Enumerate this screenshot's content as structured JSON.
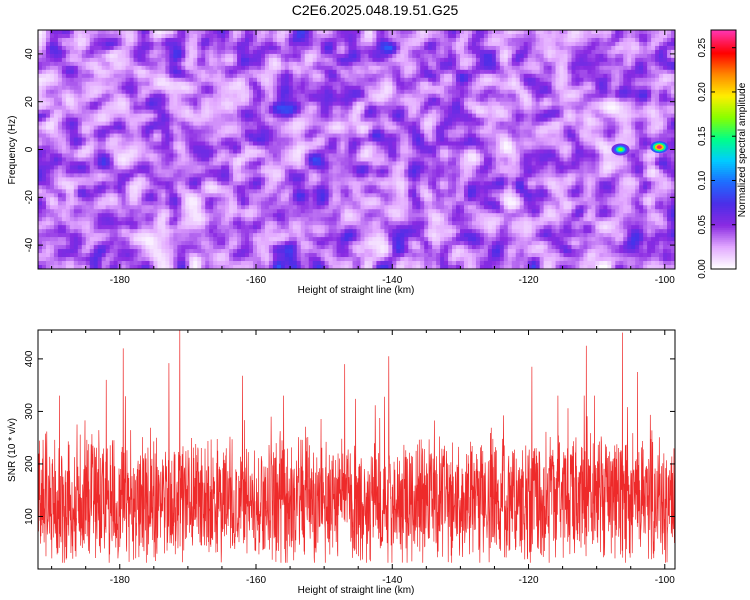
{
  "title": "C2E6.2025.048.19.51.G25",
  "colors": {
    "snr_line": "#ee2a2a",
    "frame": "#000000"
  },
  "chart_data": [
    {
      "type": "heatmap",
      "xlabel": "Height of straight line (km)",
      "ylabel": "Frequency (Hz)",
      "xlim": [
        -192,
        -98.5
      ],
      "ylim": [
        -50,
        50
      ],
      "xticks": [
        -180,
        -160,
        -140,
        -120,
        -100
      ],
      "yticks": [
        -40,
        -20,
        0,
        20,
        40
      ],
      "colorbar": {
        "label": "Normalized spectral amplitude",
        "range": [
          0,
          0.27
        ],
        "ticks": [
          "0.00",
          "0.05",
          "0.10",
          "0.15",
          "0.20",
          "0.25"
        ],
        "colormap": [
          "#ffffff",
          "#e2a8ff",
          "#8a2be2",
          "#4b2ee8",
          "#1f6cff",
          "#00ccff",
          "#00ff88",
          "#88ff00",
          "#ffee00",
          "#ff8800",
          "#ff0000",
          "#ff33aa"
        ]
      },
      "hotspots": [
        {
          "x": -100.8,
          "y": 1,
          "value": 0.26
        },
        {
          "x": -106.5,
          "y": 0,
          "value": 0.17
        }
      ]
    },
    {
      "type": "line",
      "xlabel": "Height of straight line (km)",
      "ylabel": "SNR (10 * v/v)",
      "xlim": [
        -192,
        -98.5
      ],
      "ylim": [
        0,
        455
      ],
      "xticks": [
        -180,
        -160,
        -140,
        -120,
        -100
      ],
      "yticks": [
        100,
        200,
        300,
        400
      ],
      "baseline": 130,
      "spikes": [
        {
          "x": -179.5,
          "y": 420
        },
        {
          "x": -171.2,
          "y": 455
        },
        {
          "x": -140.5,
          "y": 405
        },
        {
          "x": -111.5,
          "y": 425
        },
        {
          "x": -106.2,
          "y": 450
        },
        {
          "x": -104.0,
          "y": 375
        },
        {
          "x": -147.0,
          "y": 390
        },
        {
          "x": -119.5,
          "y": 385
        },
        {
          "x": -172.8,
          "y": 392
        },
        {
          "x": -162.0,
          "y": 368
        },
        {
          "x": -182.0,
          "y": 360
        }
      ]
    }
  ]
}
